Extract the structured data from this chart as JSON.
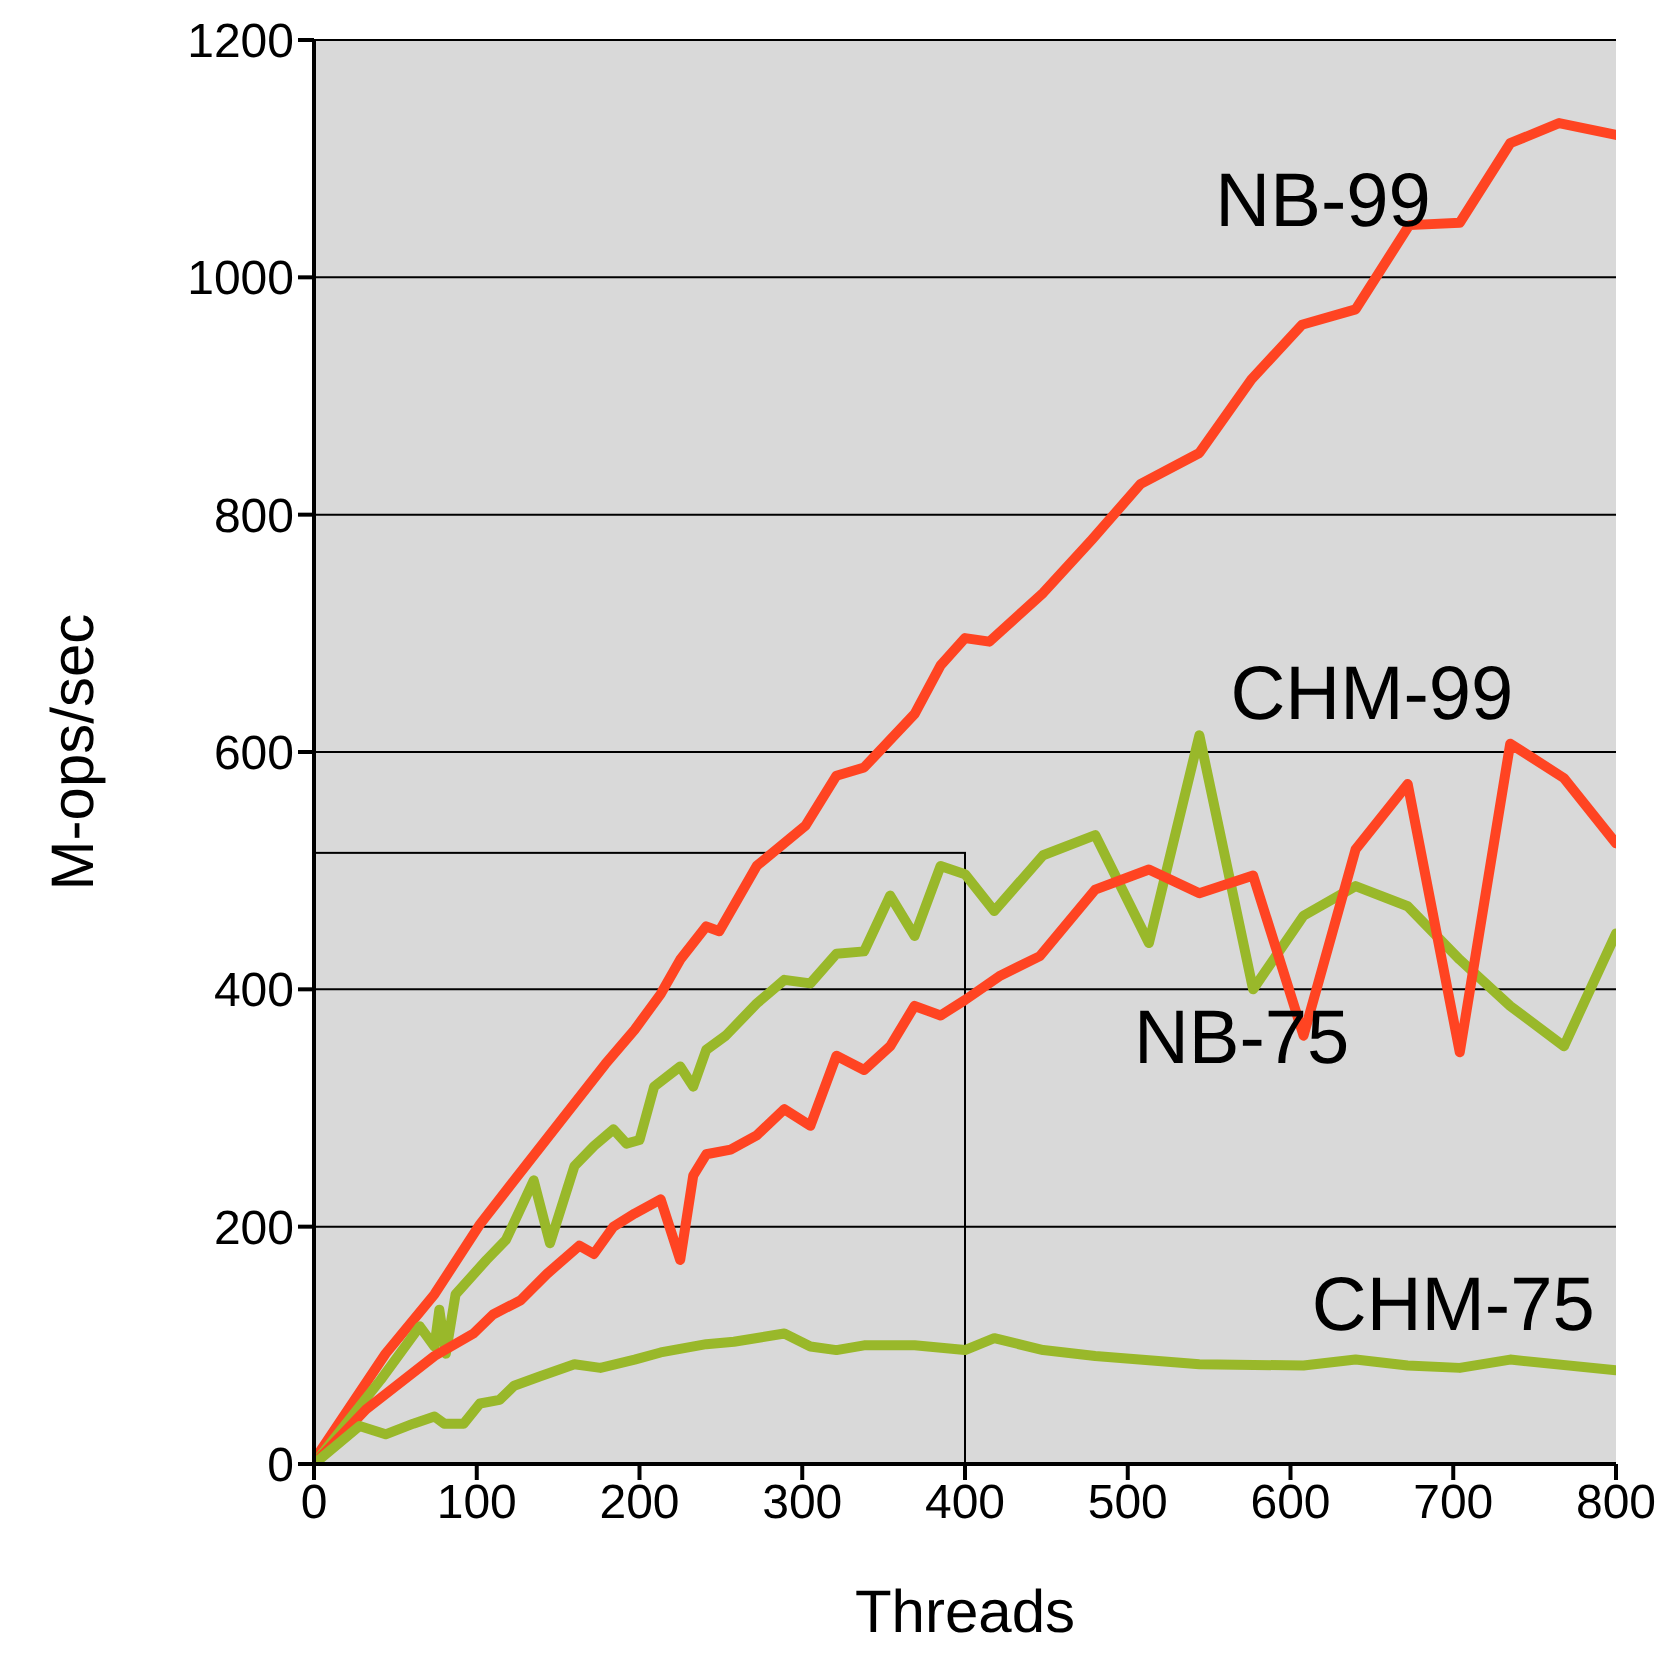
{
  "chart_data": {
    "type": "line",
    "xlabel": "Threads",
    "ylabel": "M-ops/sec",
    "xlim": [
      0,
      800
    ],
    "xticks": [
      0,
      100,
      200,
      300,
      400,
      500,
      600,
      700,
      800
    ],
    "ylim": [
      0,
      1200
    ],
    "yticks": [
      0,
      200,
      400,
      600,
      800,
      1000,
      1200
    ],
    "grid": "y",
    "marker": "none",
    "line_style": "solid",
    "series": [
      {
        "name": "NB-99",
        "color": "#ff4422",
        "x": [
          0,
          44,
          74,
          102,
          123,
          155,
          179,
          197,
          213,
          225,
          241,
          249,
          272,
          302,
          321,
          338,
          369,
          385,
          400,
          415,
          448,
          478,
          508,
          544,
          576,
          607,
          640,
          673,
          704,
          735,
          765,
          800
        ],
        "values": [
          3,
          93,
          143,
          202,
          239,
          295,
          337,
          366,
          396,
          425,
          453,
          449,
          504,
          538,
          580,
          587,
          632,
          673,
          696,
          693,
          734,
          779,
          826,
          852,
          914,
          960,
          973,
          1044,
          1046,
          1113,
          1130,
          1120
        ]
      },
      {
        "name": "CHM-99",
        "color": "#99b82a",
        "x": [
          0,
          41,
          65,
          74,
          77,
          81,
          87,
          106,
          118,
          135,
          145,
          160,
          172,
          184,
          192,
          200,
          209,
          225,
          233,
          241,
          253,
          272,
          289,
          305,
          321,
          338,
          354,
          369,
          385,
          400,
          418,
          448,
          480,
          513,
          544,
          577,
          608,
          640,
          672,
          704,
          735,
          768,
          800
        ],
        "values": [
          0,
          71,
          116,
          99,
          130,
          93,
          143,
          172,
          189,
          239,
          186,
          251,
          268,
          282,
          270,
          273,
          318,
          335,
          318,
          349,
          361,
          388,
          408,
          405,
          430,
          432,
          479,
          445,
          504,
          497,
          466,
          513,
          530,
          439,
          614,
          400,
          462,
          487,
          470,
          425,
          386,
          352,
          447
        ]
      },
      {
        "name": "NB-75",
        "color": "#ff4422",
        "x": [
          0,
          32,
          74,
          98,
          110,
          127,
          143,
          163,
          172,
          184,
          197,
          213,
          225,
          233,
          241,
          256,
          272,
          289,
          305,
          321,
          338,
          354,
          369,
          385,
          400,
          421,
          446,
          480,
          513,
          544,
          577,
          608,
          640,
          672,
          704,
          735,
          768,
          800
        ],
        "values": [
          0,
          46,
          91,
          110,
          126,
          138,
          160,
          184,
          177,
          200,
          211,
          223,
          172,
          243,
          261,
          265,
          277,
          299,
          285,
          344,
          332,
          352,
          386,
          378,
          391,
          411,
          428,
          484,
          501,
          481,
          496,
          361,
          518,
          573,
          347,
          607,
          578,
          523
        ]
      },
      {
        "name": "CHM-75",
        "color": "#99b82a",
        "x": [
          0,
          28,
          44,
          61,
          74,
          80,
          92,
          102,
          114,
          123,
          139,
          160,
          176,
          197,
          213,
          241,
          258,
          289,
          305,
          321,
          338,
          369,
          400,
          418,
          448,
          480,
          544,
          608,
          640,
          672,
          704,
          735,
          800
        ],
        "values": [
          0,
          32,
          25,
          34,
          40,
          34,
          34,
          51,
          54,
          66,
          74,
          84,
          81,
          88,
          94,
          101,
          103,
          110,
          99,
          96,
          100,
          100,
          96,
          106,
          96,
          91,
          84,
          83,
          88,
          83,
          81,
          88,
          79
        ]
      }
    ]
  }
}
